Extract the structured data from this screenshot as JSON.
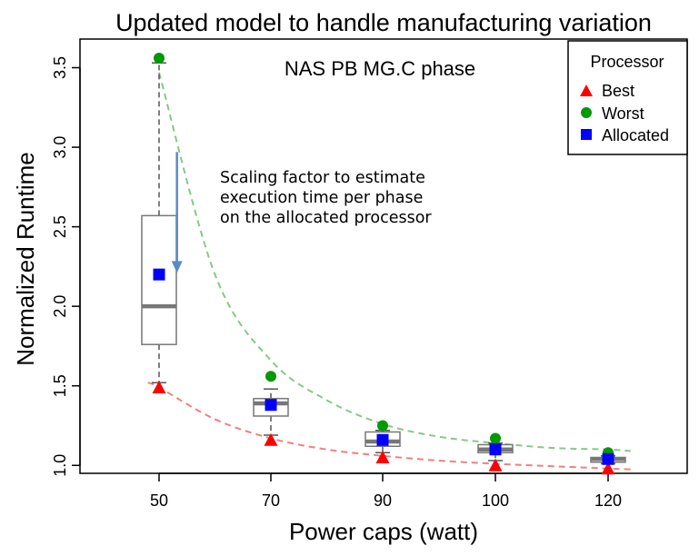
{
  "chart_data": {
    "type": "box",
    "title": "Updated model to handle manufacturing variation",
    "subtitle": "NAS PB MG.C phase",
    "xlabel": "Power caps (watt)",
    "ylabel": "Normalized Runtime",
    "categories": [
      "50",
      "70",
      "90",
      "100",
      "120"
    ],
    "ylim": [
      0.95,
      3.68
    ],
    "yticks": [
      "1.0",
      "1.5",
      "2.0",
      "2.5",
      "3.0",
      "3.5"
    ],
    "grid": false,
    "legend": {
      "title": "Processor",
      "position": "top-right",
      "entries": [
        "Best",
        "Worst",
        "Allocated"
      ]
    },
    "boxes": [
      {
        "whisker_low": 1.52,
        "q1": 1.76,
        "median": 2.0,
        "q3": 2.57,
        "whisker_high": 3.53
      },
      {
        "whisker_low": 1.19,
        "q1": 1.31,
        "median": 1.39,
        "q3": 1.42,
        "whisker_high": 1.48
      },
      {
        "whisker_low": 1.08,
        "q1": 1.12,
        "median": 1.15,
        "q3": 1.21,
        "whisker_high": 1.22
      },
      {
        "whisker_low": 1.03,
        "q1": 1.08,
        "median": 1.1,
        "q3": 1.13,
        "whisker_high": 1.14
      },
      {
        "whisker_low": 1.01,
        "q1": 1.02,
        "median": 1.04,
        "q3": 1.05,
        "whisker_high": 1.06
      }
    ],
    "series": [
      {
        "name": "Best",
        "marker": "triangle",
        "color": "#ff0000",
        "values": [
          1.49,
          1.16,
          1.05,
          1.0,
          0.98
        ]
      },
      {
        "name": "Worst",
        "marker": "circle",
        "color": "#009900",
        "values": [
          3.56,
          1.56,
          1.25,
          1.17,
          1.08
        ]
      },
      {
        "name": "Allocated",
        "marker": "square",
        "color": "#0000ff",
        "values": [
          2.2,
          1.38,
          1.16,
          1.1,
          1.04
        ]
      }
    ],
    "fit_curves": [
      {
        "color": "#88c888",
        "x": [
          0,
          0.5,
          1,
          1.5,
          2,
          2.5,
          3,
          3.5,
          4,
          4.2
        ],
        "y": [
          3.47,
          2.2,
          1.66,
          1.41,
          1.26,
          1.18,
          1.14,
          1.11,
          1.1,
          1.09
        ]
      },
      {
        "color": "#f08080",
        "x": [
          -0.1,
          0,
          0.5,
          1,
          1.5,
          2,
          2.5,
          3,
          3.5,
          4,
          4.2
        ],
        "y": [
          1.52,
          1.49,
          1.29,
          1.17,
          1.1,
          1.06,
          1.03,
          1.01,
          0.995,
          0.98,
          0.975
        ]
      }
    ],
    "annotation": {
      "lines": [
        "Scaling factor to estimate",
        "execution time per phase",
        "on the allocated processor"
      ],
      "arrow_color": "#5b8ac8",
      "arrow_from": [
        0.16,
        2.97
      ],
      "arrow_to": [
        0.16,
        2.21
      ]
    }
  }
}
